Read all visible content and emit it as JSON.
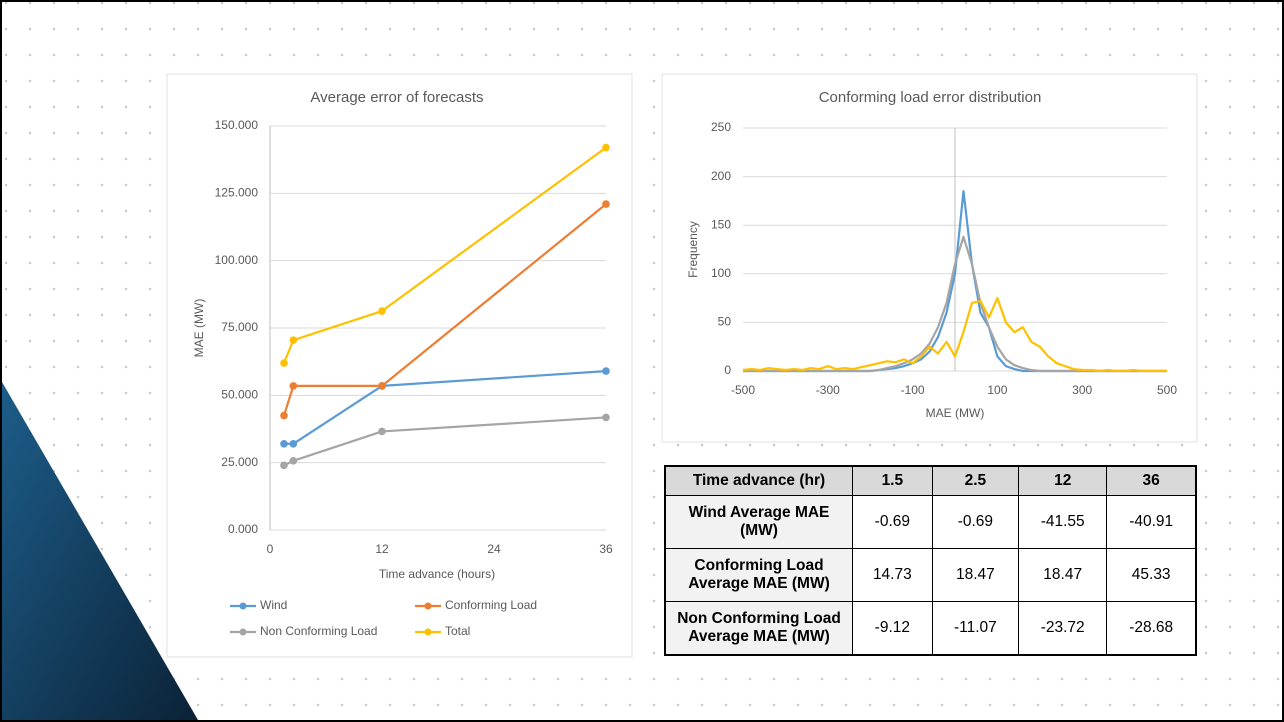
{
  "chart_data": [
    {
      "type": "line",
      "title": "Average error of forecasts",
      "x_label": "Time advance (hours)",
      "y_label": "MAE (MW)",
      "x": [
        1.5,
        2.5,
        12,
        36
      ],
      "series": [
        {
          "name": "Wind",
          "color": "#5b9bd5",
          "values": [
            32,
            32,
            53.5,
            59
          ]
        },
        {
          "name": "Conforming Load",
          "color": "#ed7d31",
          "values": [
            42.5,
            53.5,
            53.5,
            121
          ]
        },
        {
          "name": "Non Conforming Load",
          "color": "#a5a5a5",
          "values": [
            24,
            25.7,
            36.6,
            41.8
          ]
        },
        {
          "name": "Total",
          "color": "#ffc000",
          "values": [
            62,
            70.5,
            81.3,
            142
          ]
        }
      ],
      "xlim": [
        0,
        36
      ],
      "xticks": [
        0,
        12,
        24,
        36
      ],
      "ylim": [
        0,
        150
      ],
      "yticks": [
        {
          "value": 0,
          "label": "0.000"
        },
        {
          "value": 25,
          "label": "25.000"
        },
        {
          "value": 50,
          "label": "50.000"
        },
        {
          "value": 75,
          "label": "75.000"
        },
        {
          "value": 100,
          "label": "100.000"
        },
        {
          "value": 125,
          "label": "125.000"
        },
        {
          "value": 150,
          "label": "150.000"
        }
      ],
      "grid": true,
      "markers": true,
      "legend": "bottom"
    },
    {
      "type": "line",
      "title": "Conforming load error distribution",
      "x_label": "MAE (MW)",
      "y_label": "Frequency",
      "x": [
        -500,
        -480,
        -460,
        -440,
        -420,
        -400,
        -380,
        -360,
        -340,
        -320,
        -300,
        -280,
        -260,
        -240,
        -220,
        -200,
        -180,
        -160,
        -140,
        -120,
        -100,
        -80,
        -60,
        -40,
        -20,
        0,
        20,
        40,
        60,
        80,
        100,
        120,
        140,
        160,
        180,
        200,
        220,
        240,
        260,
        280,
        300,
        320,
        340,
        360,
        380,
        400,
        420,
        440,
        460,
        480,
        500
      ],
      "series": [
        {
          "color": "#5b9bd5",
          "values": [
            0,
            0,
            0,
            0,
            0,
            0,
            0,
            0,
            0,
            0,
            0,
            0,
            0,
            0,
            0,
            0,
            1,
            2,
            3,
            5,
            8,
            12,
            20,
            35,
            60,
            100,
            185,
            110,
            60,
            45,
            15,
            5,
            2,
            0,
            0,
            0,
            0,
            0,
            0,
            0,
            0,
            0,
            0,
            0,
            0,
            0,
            0,
            0,
            0,
            0,
            0
          ]
        },
        {
          "color": "#a5a5a5",
          "values": [
            0,
            0,
            0,
            0,
            0,
            0,
            0,
            0,
            0,
            0,
            0,
            0,
            0,
            0,
            0,
            0,
            1,
            3,
            5,
            8,
            12,
            18,
            28,
            45,
            70,
            110,
            138,
            110,
            70,
            45,
            25,
            12,
            6,
            3,
            1,
            0,
            0,
            0,
            0,
            0,
            0,
            0,
            0,
            0,
            0,
            0,
            0,
            0,
            0,
            0,
            0
          ]
        },
        {
          "color": "#ffc000",
          "values": [
            1,
            2,
            1,
            3,
            2,
            1,
            2,
            1,
            3,
            2,
            5,
            2,
            3,
            2,
            4,
            6,
            8,
            10,
            9,
            12,
            8,
            15,
            25,
            18,
            30,
            15,
            40,
            70,
            72,
            55,
            75,
            50,
            40,
            45,
            30,
            25,
            15,
            8,
            5,
            2,
            1,
            1,
            0,
            1,
            0,
            0,
            1,
            0,
            0,
            0,
            0
          ]
        }
      ],
      "xlim": [
        -500,
        500
      ],
      "xticks": [
        -500,
        -300,
        -100,
        100,
        300,
        500
      ],
      "ylim": [
        0,
        250
      ],
      "yticks": [
        0,
        50,
        100,
        150,
        200,
        250
      ],
      "grid": true,
      "markers": false
    }
  ],
  "table": {
    "header": [
      "Time advance (hr)",
      "1.5",
      "2.5",
      "12",
      "36"
    ],
    "rows": [
      [
        "Wind Average MAE (MW)",
        "-0.69",
        "-0.69",
        "-41.55",
        "-40.91"
      ],
      [
        "Conforming Load Average MAE (MW)",
        "14.73",
        "18.47",
        "18.47",
        "45.33"
      ],
      [
        "Non Conforming Load Average MAE (MW)",
        "-9.12",
        "-11.07",
        "-23.72",
        "-28.68"
      ]
    ]
  }
}
